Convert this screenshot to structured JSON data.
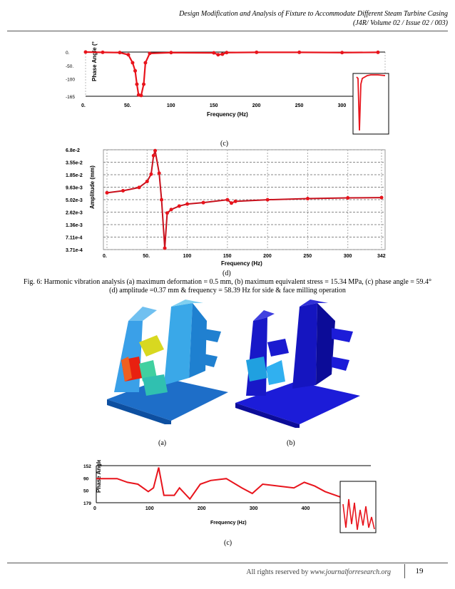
{
  "header": {
    "title": "Design Modification and Analysis of Fixture to Accommodate Different Steam Turbine Casing",
    "journal": "(J4R/ Volume 02 / Issue 02 / 003)"
  },
  "captions": {
    "c_top": "(c)",
    "d": "(d)",
    "a": "(a)",
    "b": "(b)",
    "c_bottom": "(c)"
  },
  "figure_caption": {
    "line1": "Fig. 6: Harmonic vibration analysis (a) maximum deformation = 0.5 mm, (b) maximum equivalent stress = 15.34 MPa, (c) phase angle = 59.4°",
    "line2": "(d) amplitude =0.37 mm & frequency = 58.39 Hz for side & face milling operation"
  },
  "chart_data": [
    {
      "type": "line",
      "xlabel": "Frequency (Hz)",
      "ylabel": "Phase Angle (°)",
      "xticks": [
        "0.",
        "50.",
        "100",
        "150",
        "200",
        "250",
        "300"
      ],
      "yticks": [
        "0.",
        "-50.",
        "-100",
        "-165"
      ],
      "xlim": [
        0,
        342
      ],
      "ylim": [
        -165,
        0
      ],
      "x": [
        0,
        20,
        40,
        50,
        55,
        58,
        60,
        62,
        65,
        68,
        70,
        75,
        100,
        150,
        155,
        160,
        165,
        200,
        250,
        300,
        342
      ],
      "y": [
        0,
        -1,
        -2,
        -10,
        -40,
        -70,
        -120,
        -160,
        -162,
        -120,
        -40,
        -5,
        -2,
        -3,
        -10,
        -8,
        -2,
        -1,
        -1,
        -2,
        -1
      ],
      "color": "#e8141c"
    },
    {
      "type": "line",
      "xlabel": "Frequency (Hz)",
      "ylabel": "Amplitude (mm)",
      "xticks": [
        "0.",
        "50.",
        "100",
        "150",
        "200",
        "250",
        "300",
        "342"
      ],
      "yticks": [
        "6.8e-2",
        "3.55e-2",
        "1.85e-2",
        "9.63e-3",
        "5.02e-3",
        "2.62e-3",
        "1.36e-3",
        "7.11e-4",
        "3.71e-4"
      ],
      "xlim": [
        0,
        342
      ],
      "x": [
        0,
        20,
        40,
        50,
        55,
        58,
        60,
        65,
        68,
        72,
        75,
        80,
        90,
        100,
        120,
        150,
        155,
        160,
        200,
        250,
        300,
        342
      ],
      "y": [
        0.0072,
        0.008,
        0.0095,
        0.013,
        0.019,
        0.05,
        0.065,
        0.02,
        0.005,
        0.0004,
        0.0025,
        0.003,
        0.0036,
        0.004,
        0.0043,
        0.005,
        0.0042,
        0.0046,
        0.005,
        0.0053,
        0.0055,
        0.0056
      ],
      "color": "#e8141c"
    },
    {
      "type": "line",
      "xlabel": "Frequency (Hz)",
      "ylabel": "Phase Angle (°)",
      "xticks": [
        "0",
        "100",
        "200",
        "300",
        "400"
      ],
      "yticks": [
        "152",
        "90",
        "50",
        "179"
      ],
      "xlim": [
        0,
        480
      ],
      "x": [
        0,
        40,
        60,
        80,
        100,
        110,
        120,
        130,
        150,
        160,
        180,
        200,
        220,
        250,
        280,
        300,
        320,
        350,
        380,
        400,
        420,
        440,
        460,
        480
      ],
      "y": [
        0.35,
        0.35,
        0.45,
        0.5,
        0.7,
        0.6,
        0.05,
        0.8,
        0.8,
        0.6,
        0.9,
        0.5,
        0.4,
        0.35,
        0.6,
        0.75,
        0.5,
        0.55,
        0.6,
        0.45,
        0.55,
        0.7,
        0.8,
        0.9
      ],
      "color": "#e8141c"
    }
  ]
}
